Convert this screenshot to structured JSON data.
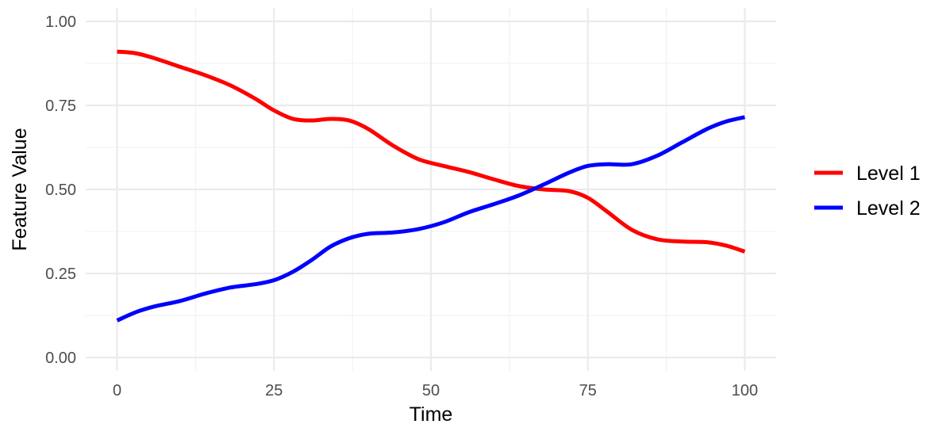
{
  "chart_data": {
    "type": "line",
    "title": "",
    "xlabel": "Time",
    "ylabel": "Feature Value",
    "xlim": [
      -5,
      105
    ],
    "ylim": [
      -0.04,
      1.04
    ],
    "x_ticks": [
      0,
      25,
      50,
      75,
      100
    ],
    "x_tick_labels": [
      "0",
      "25",
      "50",
      "75",
      "100"
    ],
    "y_ticks": [
      0,
      0.25,
      0.5,
      0.75,
      1.0
    ],
    "y_tick_labels": [
      "0.00",
      "0.25",
      "0.50",
      "0.75",
      "1.00"
    ],
    "grid": true,
    "legend_position": "right",
    "series": [
      {
        "name": "Level 1",
        "color": "#ff0000",
        "x": [
          0,
          3,
          6,
          10,
          14,
          18,
          22,
          25,
          28,
          31,
          34,
          37,
          40,
          44,
          48,
          52,
          56,
          60,
          64,
          68,
          72,
          75,
          78,
          82,
          86,
          90,
          94,
          97,
          100
        ],
        "values": [
          0.91,
          0.905,
          0.89,
          0.865,
          0.84,
          0.81,
          0.77,
          0.735,
          0.71,
          0.705,
          0.71,
          0.705,
          0.68,
          0.63,
          0.59,
          0.57,
          0.552,
          0.53,
          0.51,
          0.5,
          0.495,
          0.475,
          0.435,
          0.38,
          0.352,
          0.345,
          0.343,
          0.333,
          0.315
        ]
      },
      {
        "name": "Level 2",
        "color": "#0000ff",
        "x": [
          0,
          3,
          6,
          10,
          14,
          18,
          22,
          25,
          28,
          31,
          34,
          37,
          40,
          44,
          48,
          52,
          56,
          60,
          64,
          68,
          72,
          75,
          78,
          82,
          86,
          90,
          94,
          97,
          100
        ],
        "values": [
          0.11,
          0.135,
          0.152,
          0.168,
          0.19,
          0.208,
          0.218,
          0.23,
          0.255,
          0.29,
          0.33,
          0.355,
          0.368,
          0.372,
          0.382,
          0.402,
          0.432,
          0.456,
          0.482,
          0.515,
          0.55,
          0.57,
          0.575,
          0.575,
          0.6,
          0.64,
          0.68,
          0.702,
          0.715
        ]
      }
    ]
  }
}
